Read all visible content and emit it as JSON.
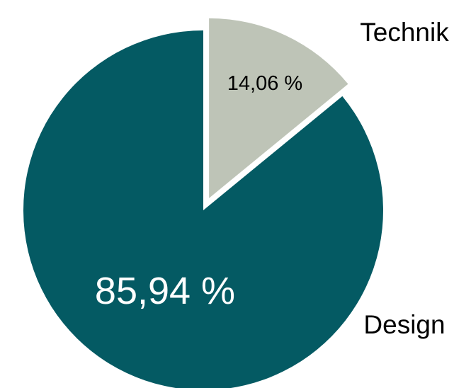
{
  "chart_data": {
    "type": "pie",
    "title": "",
    "categories": [
      "Technik",
      "Design"
    ],
    "values": [
      14.06,
      85.94
    ],
    "value_labels": [
      "14,06 %",
      "85,94 %"
    ],
    "colors": [
      "#bec4b7",
      "#045a63"
    ],
    "value_label_colors": [
      "#000000",
      "#ffffff"
    ],
    "exploded": [
      "Technik"
    ],
    "legend": "none",
    "start": "12 o'clock",
    "direction": "clockwise"
  }
}
